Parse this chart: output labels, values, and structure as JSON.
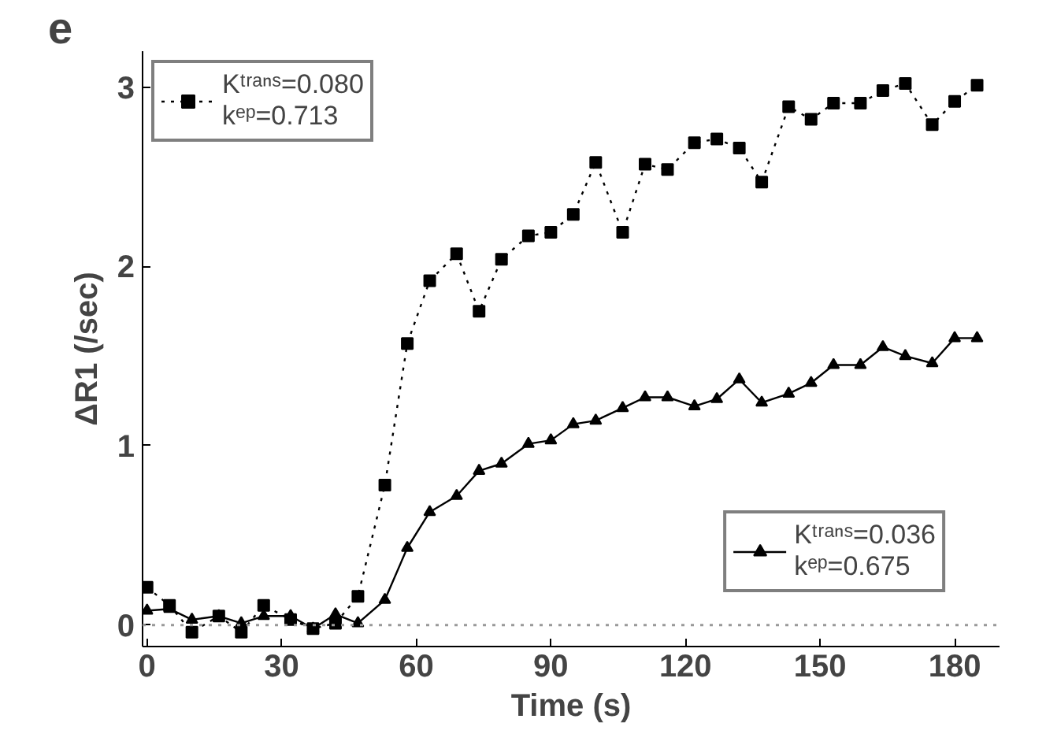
{
  "chart_data": {
    "type": "line",
    "annotations": [
      "e"
    ],
    "xlabel": "Time (s)",
    "ylabel": "ΔR1 (/sec)",
    "x": [
      0,
      5,
      10,
      16,
      21,
      26,
      32,
      37,
      42,
      47,
      53,
      58,
      63,
      69,
      74,
      79,
      85,
      90,
      95,
      100,
      106,
      111,
      116,
      122,
      127,
      132,
      137,
      143,
      148,
      153,
      159,
      164,
      169,
      175,
      180,
      185
    ],
    "series": [
      {
        "name": "Kᵗʳᵃⁿˢ=0.080\nkᵉᵖ=0.713",
        "color": "#000000",
        "marker": "square",
        "line_style": "dotted",
        "values": [
          0.21,
          0.11,
          -0.04,
          0.05,
          -0.04,
          0.11,
          0.03,
          -0.02,
          0.01,
          0.16,
          0.78,
          1.57,
          1.92,
          2.07,
          1.75,
          2.04,
          2.17,
          2.19,
          2.29,
          2.58,
          2.19,
          2.57,
          2.54,
          2.69,
          2.71,
          2.66,
          2.47,
          2.89,
          2.82,
          2.91,
          2.91,
          2.98,
          3.02,
          2.79,
          2.92,
          3.01
        ]
      },
      {
        "name": "Kᵗʳᵃⁿˢ=0.036\nkᵉᵖ=0.675",
        "color": "#000000",
        "marker": "triangle",
        "line_style": "solid",
        "values": [
          0.08,
          0.09,
          0.03,
          0.05,
          0.01,
          0.05,
          0.05,
          -0.02,
          0.06,
          0.01,
          0.14,
          0.43,
          0.63,
          0.72,
          0.86,
          0.9,
          1.01,
          1.03,
          1.12,
          1.14,
          1.21,
          1.27,
          1.27,
          1.22,
          1.26,
          1.37,
          1.24,
          1.29,
          1.35,
          1.45,
          1.45,
          1.55,
          1.5,
          1.46,
          1.6,
          1.6
        ]
      }
    ],
    "xlim": [
      -1,
      190
    ],
    "ylim": [
      -0.12,
      3.2
    ],
    "xticks": [
      0,
      30,
      60,
      90,
      120,
      150,
      180
    ],
    "yticks": [
      0,
      1,
      2,
      3
    ],
    "ref_lines": [
      {
        "axis": "y",
        "value": 0,
        "color": "#999999",
        "line_style": "dotted"
      }
    ],
    "grid": false,
    "legend": [
      "top left",
      "right"
    ]
  }
}
